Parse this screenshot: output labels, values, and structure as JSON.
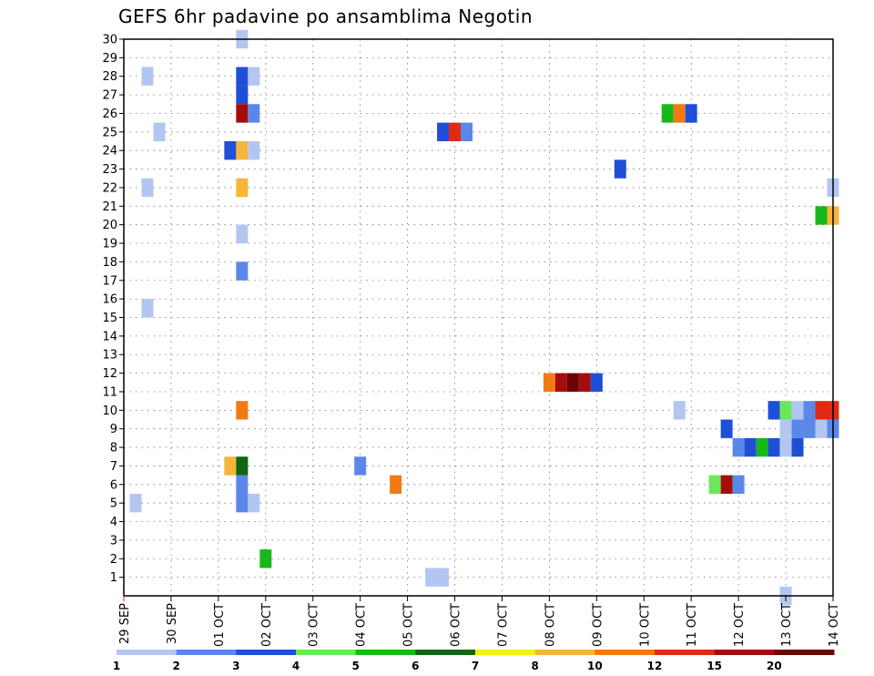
{
  "chart_data": {
    "type": "heatmap",
    "title": "GEFS 6hr padavine po ansamblima Negotin",
    "x_tick_labels": [
      "29 SEP",
      "30 SEP",
      "01 OCT",
      "02 OCT",
      "03 OCT",
      "04 OCT",
      "05 OCT",
      "06 OCT",
      "07 OCT",
      "08 OCT",
      "09 OCT",
      "10 OCT",
      "11 OCT",
      "12 OCT",
      "13 OCT",
      "14 OCT"
    ],
    "y_tick_labels": [
      "1",
      "2",
      "3",
      "4",
      "5",
      "6",
      "7",
      "8",
      "9",
      "10",
      "11",
      "12",
      "13",
      "14",
      "15",
      "16",
      "17",
      "18",
      "19",
      "20",
      "21",
      "22",
      "23",
      "24",
      "25",
      "26",
      "27",
      "28",
      "29",
      "30"
    ],
    "x_unit": "6-hour step from 29 SEP 00Z",
    "y_range": [
      0,
      30
    ],
    "x_range": [
      0,
      60
    ],
    "grid": true,
    "legend": {
      "placement": "bottom",
      "labels": [
        "1",
        "2",
        "3",
        "4",
        "5",
        "6",
        "7",
        "8",
        "10",
        "12",
        "15",
        "20"
      ],
      "colors": [
        "#b3c6f2",
        "#5b87e8",
        "#1e4fd6",
        "#6ae85a",
        "#18b81a",
        "#106510",
        "#f2f20d",
        "#f7b43a",
        "#f27a10",
        "#e02b14",
        "#a50c0c",
        "#6b0505"
      ]
    },
    "cells": [
      {
        "x": 1,
        "y": 5,
        "v": 1.5
      },
      {
        "x": 2,
        "y": 28,
        "v": 1.5
      },
      {
        "x": 2,
        "y": 22,
        "v": 1.5
      },
      {
        "x": 2,
        "y": 15.5,
        "v": 1.5
      },
      {
        "x": 3,
        "y": 25,
        "v": 1.5
      },
      {
        "x": 9,
        "y": 24,
        "v": 3.5
      },
      {
        "x": 9,
        "y": 7,
        "v": 8
      },
      {
        "x": 10,
        "y": 30,
        "v": 1.5
      },
      {
        "x": 10,
        "y": 28,
        "v": 3.5
      },
      {
        "x": 10,
        "y": 27,
        "v": 3.5
      },
      {
        "x": 10,
        "y": 26,
        "v": 15
      },
      {
        "x": 10,
        "y": 24,
        "v": 8
      },
      {
        "x": 10,
        "y": 22,
        "v": 8
      },
      {
        "x": 10,
        "y": 19.5,
        "v": 1.5
      },
      {
        "x": 10,
        "y": 17.5,
        "v": 2.5
      },
      {
        "x": 10,
        "y": 10,
        "v": 10
      },
      {
        "x": 10,
        "y": 7,
        "v": 6.5
      },
      {
        "x": 10,
        "y": 6,
        "v": 2.5
      },
      {
        "x": 10,
        "y": 5,
        "v": 2.5
      },
      {
        "x": 11,
        "y": 28,
        "v": 1.5
      },
      {
        "x": 11,
        "y": 26,
        "v": 2.5
      },
      {
        "x": 11,
        "y": 24,
        "v": 1.5
      },
      {
        "x": 11,
        "y": 5,
        "v": 1.5
      },
      {
        "x": 12,
        "y": 2,
        "v": 5.5
      },
      {
        "x": 20,
        "y": 7,
        "v": 2.5
      },
      {
        "x": 23,
        "y": 6,
        "v": 10
      },
      {
        "x": 26,
        "y": 1,
        "v": 1.5
      },
      {
        "x": 27,
        "y": 1,
        "v": 1.5
      },
      {
        "x": 27,
        "y": 25,
        "v": 3.5
      },
      {
        "x": 28,
        "y": 25,
        "v": 12
      },
      {
        "x": 29,
        "y": 25,
        "v": 2.5
      },
      {
        "x": 36,
        "y": 11.5,
        "v": 10
      },
      {
        "x": 37,
        "y": 11.5,
        "v": 15
      },
      {
        "x": 38,
        "y": 11.5,
        "v": 22
      },
      {
        "x": 39,
        "y": 11.5,
        "v": 15
      },
      {
        "x": 40,
        "y": 11.5,
        "v": 3.5
      },
      {
        "x": 42,
        "y": 23,
        "v": 3.5
      },
      {
        "x": 46,
        "y": 26,
        "v": 5.5
      },
      {
        "x": 47,
        "y": 26,
        "v": 10
      },
      {
        "x": 48,
        "y": 26,
        "v": 3.5
      },
      {
        "x": 47,
        "y": 10,
        "v": 1.5
      },
      {
        "x": 50,
        "y": 6,
        "v": 4.5
      },
      {
        "x": 51,
        "y": 6,
        "v": 15
      },
      {
        "x": 52,
        "y": 6,
        "v": 2.5
      },
      {
        "x": 51,
        "y": 9,
        "v": 3.5
      },
      {
        "x": 52,
        "y": 8,
        "v": 2.5
      },
      {
        "x": 53,
        "y": 8,
        "v": 3.5
      },
      {
        "x": 54,
        "y": 8,
        "v": 5.5
      },
      {
        "x": 55,
        "y": 8,
        "v": 3.5
      },
      {
        "x": 56,
        "y": 8,
        "v": 1.5
      },
      {
        "x": 57,
        "y": 8,
        "v": 3.5
      },
      {
        "x": 55,
        "y": 10,
        "v": 3.5
      },
      {
        "x": 56,
        "y": 10,
        "v": 4.5
      },
      {
        "x": 57,
        "y": 10,
        "v": 1.5
      },
      {
        "x": 58,
        "y": 10,
        "v": 2.5
      },
      {
        "x": 59,
        "y": 10,
        "v": 12
      },
      {
        "x": 60,
        "y": 10,
        "v": 12
      },
      {
        "x": 56,
        "y": 9,
        "v": 1.5
      },
      {
        "x": 57,
        "y": 9,
        "v": 2.5
      },
      {
        "x": 58,
        "y": 9,
        "v": 2.5
      },
      {
        "x": 59,
        "y": 9,
        "v": 1.5
      },
      {
        "x": 60,
        "y": 9,
        "v": 2.5
      },
      {
        "x": 56,
        "y": 0,
        "v": 1.5
      },
      {
        "x": 59,
        "y": 20.5,
        "v": 5.5
      },
      {
        "x": 60,
        "y": 20.5,
        "v": 8
      },
      {
        "x": 60,
        "y": 22,
        "v": 1.5
      }
    ]
  }
}
